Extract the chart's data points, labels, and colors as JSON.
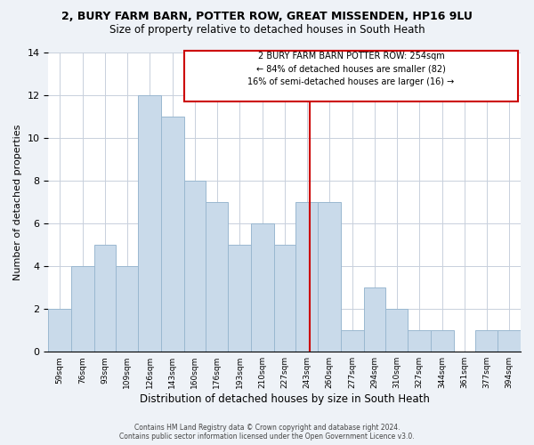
{
  "title": "2, BURY FARM BARN, POTTER ROW, GREAT MISSENDEN, HP16 9LU",
  "subtitle": "Size of property relative to detached houses in South Heath",
  "xlabel": "Distribution of detached houses by size in South Heath",
  "ylabel": "Number of detached properties",
  "bar_labels": [
    "59sqm",
    "76sqm",
    "93sqm",
    "109sqm",
    "126sqm",
    "143sqm",
    "160sqm",
    "176sqm",
    "193sqm",
    "210sqm",
    "227sqm",
    "243sqm",
    "260sqm",
    "277sqm",
    "294sqm",
    "310sqm",
    "327sqm",
    "344sqm",
    "361sqm",
    "377sqm",
    "394sqm"
  ],
  "bar_values": [
    2,
    4,
    5,
    4,
    12,
    11,
    8,
    7,
    5,
    6,
    5,
    7,
    7,
    1,
    3,
    2,
    1,
    1,
    0,
    1,
    1
  ],
  "bar_color": "#c9daea",
  "bar_edgecolor": "#9ab8d0",
  "annotation_line1": "2 BURY FARM BARN POTTER ROW: 254sqm",
  "annotation_line2": "← 84% of detached houses are smaller (82)",
  "annotation_line3": "16% of semi-detached houses are larger (16) →",
  "vline_color": "#cc0000",
  "vline_position": 254,
  "ylim": [
    0,
    14
  ],
  "background_color": "#eef2f7",
  "plot_background": "#ffffff",
  "footer": "Contains HM Land Registry data © Crown copyright and database right 2024.\nContains public sector information licensed under the Open Government Licence v3.0.",
  "bin_edges": [
    59,
    76,
    93,
    109,
    126,
    143,
    160,
    176,
    193,
    210,
    227,
    243,
    260,
    277,
    294,
    310,
    327,
    344,
    361,
    377,
    394,
    411
  ]
}
